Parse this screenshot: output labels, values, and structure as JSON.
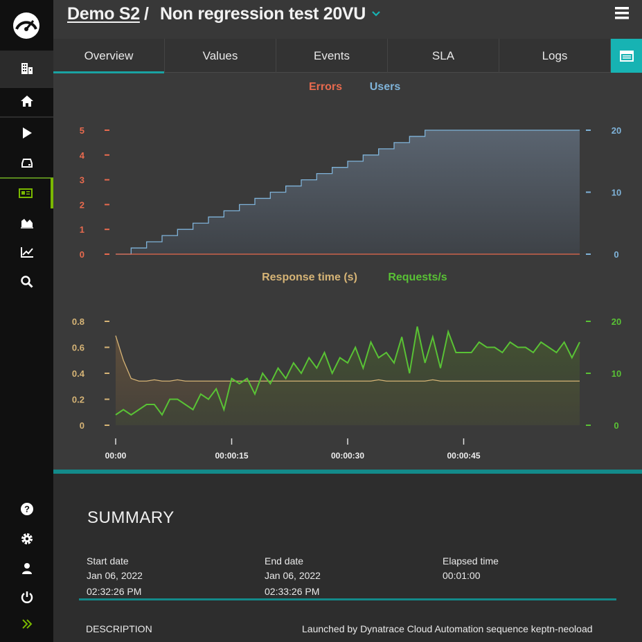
{
  "header": {
    "project": "Demo S2",
    "separator": "/",
    "test_name": "Non regression test 20VU"
  },
  "tabs": [
    {
      "label": "Overview",
      "active": true
    },
    {
      "label": "Values",
      "active": false
    },
    {
      "label": "Events",
      "active": false
    },
    {
      "label": "SLA",
      "active": false
    },
    {
      "label": "Logs",
      "active": false
    }
  ],
  "colors": {
    "errors": "#e86a4e",
    "users": "#7fb3d9",
    "response": "#d6b476",
    "requests": "#59c235",
    "accent": "#17b3b3"
  },
  "chart_data": [
    {
      "type": "line",
      "title": "Errors / Users",
      "legend": [
        "Errors",
        "Users"
      ],
      "x": [
        0,
        2,
        4,
        6,
        8,
        10,
        12,
        14,
        16,
        18,
        20,
        22,
        24,
        26,
        28,
        30,
        32,
        34,
        36,
        38,
        40,
        60
      ],
      "series": [
        {
          "name": "Errors",
          "axis": "left",
          "values": [
            0,
            0,
            0,
            0,
            0,
            0,
            0,
            0,
            0,
            0,
            0,
            0,
            0,
            0,
            0,
            0,
            0,
            0,
            0,
            0,
            0,
            0
          ]
        },
        {
          "name": "Users",
          "axis": "right",
          "values": [
            0,
            1,
            2,
            3,
            4,
            5,
            6,
            7,
            8,
            9,
            10,
            11,
            12,
            13,
            14,
            15,
            16,
            17,
            18,
            19,
            20,
            20
          ]
        }
      ],
      "y_left": {
        "ticks": [
          "0",
          "1",
          "2",
          "3",
          "4",
          "5"
        ],
        "range": [
          0,
          5
        ]
      },
      "y_right": {
        "ticks": [
          "0",
          "10",
          "20"
        ],
        "range": [
          0,
          20
        ]
      }
    },
    {
      "type": "line",
      "title": "Response time / Requests",
      "legend": [
        "Response time (s)",
        "Requests/s"
      ],
      "x": [
        0,
        1,
        2,
        3,
        4,
        5,
        6,
        7,
        8,
        9,
        10,
        11,
        12,
        13,
        14,
        15,
        16,
        17,
        18,
        19,
        20,
        21,
        22,
        23,
        24,
        25,
        26,
        27,
        28,
        29,
        30,
        31,
        32,
        33,
        34,
        35,
        36,
        37,
        38,
        39,
        40,
        41,
        42,
        43,
        44,
        45,
        46,
        47,
        48,
        49,
        50,
        51,
        52,
        53,
        54,
        55,
        56,
        57,
        58,
        59,
        60
      ],
      "series": [
        {
          "name": "Response time (s)",
          "axis": "left",
          "values": [
            0.69,
            0.5,
            0.36,
            0.34,
            0.34,
            0.35,
            0.34,
            0.34,
            0.35,
            0.34,
            0.34,
            0.34,
            0.34,
            0.34,
            0.34,
            0.34,
            0.34,
            0.34,
            0.34,
            0.34,
            0.34,
            0.34,
            0.34,
            0.34,
            0.34,
            0.34,
            0.34,
            0.34,
            0.34,
            0.34,
            0.34,
            0.34,
            0.34,
            0.34,
            0.35,
            0.34,
            0.34,
            0.34,
            0.34,
            0.34,
            0.34,
            0.35,
            0.34,
            0.34,
            0.34,
            0.34,
            0.34,
            0.34,
            0.34,
            0.34,
            0.34,
            0.34,
            0.34,
            0.34,
            0.34,
            0.34,
            0.34,
            0.34,
            0.34,
            0.34,
            0.34
          ]
        },
        {
          "name": "Requests/s",
          "axis": "right",
          "values": [
            2,
            3,
            2,
            3,
            4,
            4,
            2,
            5,
            5,
            4,
            3,
            6,
            5,
            7,
            3,
            9,
            8,
            9,
            6,
            10,
            8,
            11,
            9,
            12,
            10,
            13,
            11,
            14,
            10,
            13,
            12,
            15,
            11,
            16,
            13,
            14,
            12,
            17,
            10,
            19,
            12,
            17,
            11,
            18,
            14,
            14,
            14,
            16,
            15,
            15,
            14,
            16,
            15,
            15,
            14,
            16,
            15,
            14,
            16,
            13,
            16
          ]
        }
      ],
      "y_left": {
        "ticks": [
          "0",
          "0.2",
          "0.4",
          "0.6",
          "0.8"
        ],
        "range": [
          0,
          0.8
        ]
      },
      "y_right": {
        "ticks": [
          "0",
          "10",
          "20"
        ],
        "range": [
          0,
          20
        ]
      },
      "x_ticks": [
        "00:00",
        "00:00:15",
        "00:00:30",
        "00:00:45"
      ]
    }
  ],
  "summary": {
    "title": "SUMMARY",
    "start_label": "Start date",
    "start_date": "Jan 06, 2022",
    "start_time": "02:32:26 PM",
    "end_label": "End date",
    "end_date": "Jan 06, 2022",
    "end_time": "02:33:26 PM",
    "elapsed_label": "Elapsed time",
    "elapsed_value": "00:01:00",
    "description_label": "DESCRIPTION",
    "description_value": "Launched by Dynatrace Cloud Automation sequence keptn-neoload"
  }
}
